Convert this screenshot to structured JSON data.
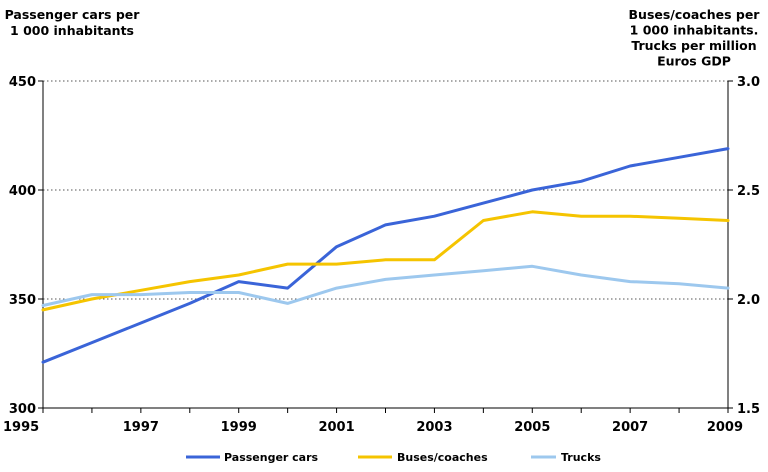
{
  "chart_data": {
    "type": "line",
    "x": [
      1995,
      1996,
      1997,
      1998,
      1999,
      2000,
      2001,
      2002,
      2003,
      2004,
      2005,
      2006,
      2007,
      2008,
      2009
    ],
    "x_tick_labels": [
      "1995",
      "1997",
      "1999",
      "2001",
      "2003",
      "2005",
      "2007",
      "2009"
    ],
    "xlim": [
      1995,
      2009
    ],
    "y_left": {
      "title_lines": [
        "Passenger cars per",
        "1 000 inhabitants"
      ],
      "lim": [
        300,
        450
      ],
      "ticks": [
        300,
        350,
        400,
        450
      ],
      "tick_labels": [
        "300",
        "350",
        "400",
        "450"
      ]
    },
    "y_right": {
      "title_lines": [
        "Buses/coaches per",
        "1 000 inhabitants.",
        "Trucks per million",
        "Euros GDP"
      ],
      "lim": [
        1.5,
        3.0
      ],
      "ticks": [
        1.5,
        2.0,
        2.5,
        3.0
      ],
      "tick_labels": [
        "1.5",
        "2.0",
        "2.5",
        "3.0"
      ]
    },
    "gridlines": "dotted, horizontal at major ticks",
    "legend_position": "bottom",
    "series": [
      {
        "name": "Passenger cars",
        "axis": "left",
        "color": "#3A64D8",
        "values": [
          321,
          330,
          339,
          348,
          358,
          355,
          374,
          384,
          388,
          394,
          400,
          404,
          411,
          415,
          419
        ]
      },
      {
        "name": "Buses/coaches",
        "axis": "right",
        "color": "#F5C400",
        "values": [
          1.95,
          2.0,
          2.04,
          2.08,
          2.11,
          2.16,
          2.16,
          2.18,
          2.18,
          2.36,
          2.4,
          2.38,
          2.38,
          2.37,
          2.36
        ]
      },
      {
        "name": "Trucks",
        "axis": "right",
        "color": "#9DC8EE",
        "values": [
          1.97,
          2.02,
          2.02,
          2.03,
          2.03,
          1.98,
          2.05,
          2.09,
          2.11,
          2.13,
          2.15,
          2.11,
          2.08,
          2.07,
          2.05
        ]
      }
    ]
  }
}
